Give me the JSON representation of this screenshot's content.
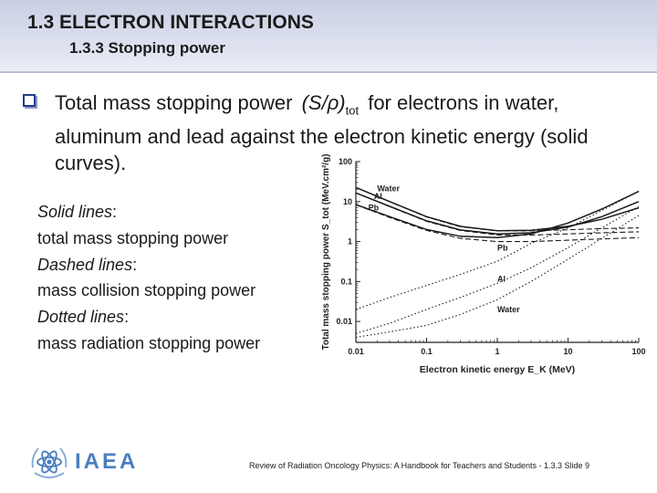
{
  "header": {
    "title": "1.3  ELECTRON INTERACTIONS",
    "subtitle": "1.3.3 Stopping power"
  },
  "bullet": {
    "text_before": "Total mass stopping power ",
    "formula_main": "(S/ρ)",
    "formula_sub": "tot",
    "text_after": " for electrons in water, aluminum and lead against the electron kinetic energy (solid curves)."
  },
  "legend": [
    {
      "term": "Solid lines",
      "desc": "total mass stopping power"
    },
    {
      "term": "Dashed lines",
      "desc": "mass collision stopping power"
    },
    {
      "term": "Dotted lines",
      "desc": "mass radiation stopping power"
    }
  ],
  "chart_data": {
    "type": "line",
    "xlabel": "Electron kinetic energy E_K (MeV)",
    "ylabel": "Total mass stopping power S_tot (MeV.cm²/g)",
    "x_scale": "log",
    "y_scale": "log",
    "xlim": [
      0.01,
      100
    ],
    "ylim": [
      0.003,
      100
    ],
    "x_ticks": [
      "0.01",
      "0.1",
      "1",
      "10",
      "100"
    ],
    "y_ticks": [
      "100",
      "10",
      "1",
      "0.1",
      "0.01"
    ],
    "grid": false,
    "annotations": [
      "Water",
      "Al",
      "Pb",
      "Pb",
      "Al",
      "Water"
    ],
    "series": [
      {
        "name": "Water",
        "style": "solid",
        "x": [
          0.01,
          0.03,
          0.1,
          0.3,
          1,
          3,
          10,
          30,
          100
        ],
        "y": [
          22.6,
          10.0,
          4.2,
          2.4,
          1.86,
          1.92,
          2.4,
          3.6,
          7.0
        ]
      },
      {
        "name": "Al",
        "style": "solid",
        "x": [
          0.01,
          0.03,
          0.1,
          0.3,
          1,
          3,
          10,
          30,
          100
        ],
        "y": [
          16.5,
          7.6,
          3.3,
          1.95,
          1.55,
          1.65,
          2.3,
          4.2,
          10.0
        ]
      },
      {
        "name": "Pb",
        "style": "solid",
        "x": [
          0.01,
          0.03,
          0.1,
          0.3,
          1,
          3,
          10,
          30,
          100
        ],
        "y": [
          8.4,
          4.2,
          2.0,
          1.35,
          1.25,
          1.55,
          2.9,
          6.5,
          18.0
        ]
      },
      {
        "name": "Water",
        "style": "dashed",
        "x": [
          0.01,
          0.03,
          0.1,
          0.3,
          1,
          3,
          10,
          30,
          100
        ],
        "y": [
          22.6,
          10.0,
          4.1,
          2.35,
          1.85,
          1.86,
          1.97,
          2.1,
          2.2
        ]
      },
      {
        "name": "Al",
        "style": "dashed",
        "x": [
          0.01,
          0.03,
          0.1,
          0.3,
          1,
          3,
          10,
          30,
          100
        ],
        "y": [
          16.5,
          7.5,
          3.2,
          1.9,
          1.46,
          1.45,
          1.55,
          1.65,
          1.75
        ]
      },
      {
        "name": "Pb",
        "style": "dashed",
        "x": [
          0.01,
          0.03,
          0.1,
          0.3,
          1,
          3,
          10,
          30,
          100
        ],
        "y": [
          8.3,
          4.0,
          1.9,
          1.2,
          1.0,
          1.0,
          1.08,
          1.16,
          1.25
        ]
      },
      {
        "name": "Pb",
        "style": "dotted",
        "x": [
          0.01,
          0.03,
          0.1,
          0.3,
          1,
          3,
          10,
          30,
          100
        ],
        "y": [
          0.02,
          0.04,
          0.08,
          0.15,
          0.32,
          0.9,
          2.2,
          6.0,
          18.0
        ]
      },
      {
        "name": "Al",
        "style": "dotted",
        "x": [
          0.01,
          0.03,
          0.1,
          0.3,
          1,
          3,
          10,
          30,
          100
        ],
        "y": [
          0.005,
          0.009,
          0.02,
          0.04,
          0.09,
          0.22,
          0.7,
          2.2,
          7.5
        ]
      },
      {
        "name": "Water",
        "style": "dotted",
        "x": [
          0.01,
          0.03,
          0.1,
          0.3,
          1,
          3,
          10,
          30,
          100
        ],
        "y": [
          0.004,
          0.0055,
          0.008,
          0.015,
          0.035,
          0.1,
          0.36,
          1.2,
          4.5
        ]
      }
    ]
  },
  "footer": {
    "logo_text": "IAEA",
    "citation": "Review of Radiation Oncology Physics: A Handbook for Teachers and Students - 1.3.3 Slide 9"
  }
}
